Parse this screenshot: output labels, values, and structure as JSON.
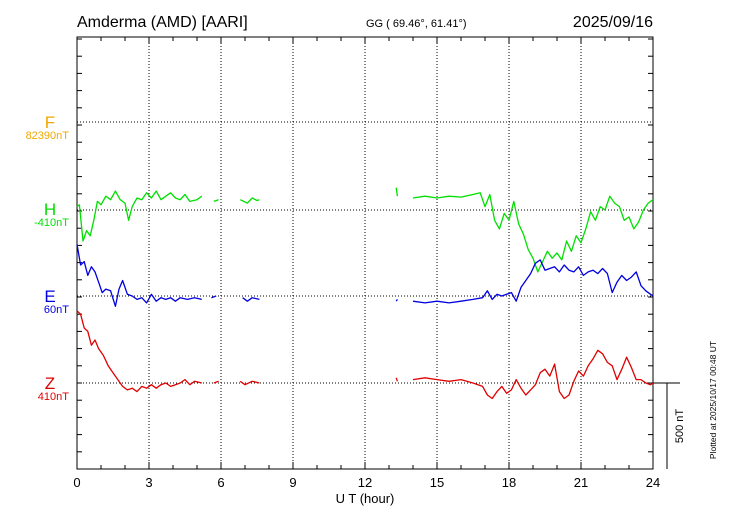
{
  "header": {
    "station": "Amderma (AMD)  [AARI]",
    "coords": "GG ( 69.46°,  61.41°)",
    "date": "2025/09/16"
  },
  "colors": {
    "F": "#f0a800",
    "H": "#00e000",
    "E": "#0000e0",
    "Z": "#e00000",
    "axis": "#000000"
  },
  "chart_data": {
    "type": "line",
    "title": "Amderma (AMD)  [AARI]  2025/09/16",
    "xlabel": "U T (hour)",
    "ylabel": "",
    "xlim": [
      0,
      24
    ],
    "xticks": [
      0,
      3,
      6,
      9,
      12,
      15,
      18,
      21,
      24
    ],
    "xtick_labels": [
      "0",
      "3",
      "6",
      "9",
      "12",
      "15",
      "18",
      "21",
      "24"
    ],
    "grid": true,
    "scale_label": "500 nT",
    "plotted_note": "Plotted at 2025/10/17 00:48 UT",
    "series": [
      {
        "name": "F",
        "baseline_label": "82390nT",
        "units": "nT offset from baseline",
        "points": []
      },
      {
        "name": "H",
        "baseline_label": "-410nT",
        "units": "nT offset from baseline",
        "points": [
          [
            0.0,
            20
          ],
          [
            0.1,
            30
          ],
          [
            0.25,
            -180
          ],
          [
            0.4,
            -120
          ],
          [
            0.55,
            -150
          ],
          [
            0.7,
            -60
          ],
          [
            0.85,
            50
          ],
          [
            1.0,
            30
          ],
          [
            1.2,
            80
          ],
          [
            1.4,
            60
          ],
          [
            1.6,
            110
          ],
          [
            1.8,
            60
          ],
          [
            2.0,
            40
          ],
          [
            2.15,
            -60
          ],
          [
            2.3,
            20
          ],
          [
            2.5,
            70
          ],
          [
            2.7,
            60
          ],
          [
            2.9,
            100
          ],
          [
            3.1,
            70
          ],
          [
            3.3,
            110
          ],
          [
            3.5,
            60
          ],
          [
            3.7,
            80
          ],
          [
            3.9,
            100
          ],
          [
            4.1,
            70
          ],
          [
            4.3,
            60
          ],
          [
            4.5,
            90
          ],
          [
            4.7,
            50
          ],
          [
            5.0,
            60
          ],
          [
            5.2,
            80
          ],
          [
            null,
            null
          ],
          [
            5.7,
            50
          ],
          [
            5.9,
            60
          ],
          [
            null,
            null
          ],
          [
            6.4,
            50
          ],
          [
            null,
            null
          ],
          [
            6.8,
            60
          ],
          [
            7.1,
            40
          ],
          [
            7.3,
            70
          ],
          [
            7.5,
            55
          ],
          [
            7.6,
            60
          ],
          [
            null,
            null
          ],
          [
            13.3,
            130
          ],
          [
            13.35,
            80
          ],
          [
            null,
            null
          ],
          [
            14.0,
            70
          ],
          [
            14.5,
            80
          ],
          [
            15.0,
            70
          ],
          [
            15.5,
            80
          ],
          [
            16.0,
            75
          ],
          [
            16.5,
            90
          ],
          [
            16.8,
            100
          ],
          [
            17.0,
            20
          ],
          [
            17.2,
            90
          ],
          [
            17.4,
            -60
          ],
          [
            17.6,
            -110
          ],
          [
            17.8,
            -20
          ],
          [
            18.0,
            -60
          ],
          [
            18.2,
            50
          ],
          [
            18.4,
            -80
          ],
          [
            18.6,
            -140
          ],
          [
            18.8,
            -230
          ],
          [
            19.0,
            -280
          ],
          [
            19.2,
            -360
          ],
          [
            19.4,
            -300
          ],
          [
            19.6,
            -240
          ],
          [
            19.8,
            -280
          ],
          [
            20.0,
            -250
          ],
          [
            20.2,
            -290
          ],
          [
            20.4,
            -180
          ],
          [
            20.6,
            -240
          ],
          [
            20.8,
            -150
          ],
          [
            21.0,
            -190
          ],
          [
            21.2,
            -110
          ],
          [
            21.4,
            -10
          ],
          [
            21.6,
            -60
          ],
          [
            21.8,
            20
          ],
          [
            22.0,
            0
          ],
          [
            22.2,
            80
          ],
          [
            22.4,
            40
          ],
          [
            22.6,
            20
          ],
          [
            22.8,
            -60
          ],
          [
            23.0,
            -40
          ],
          [
            23.2,
            -110
          ],
          [
            23.4,
            -70
          ],
          [
            23.6,
            0
          ],
          [
            23.8,
            40
          ],
          [
            24.0,
            60
          ]
        ]
      },
      {
        "name": "E",
        "baseline_label": "60nT",
        "units": "nT offset from baseline",
        "points": [
          [
            0.0,
            300
          ],
          [
            0.15,
            180
          ],
          [
            0.3,
            200
          ],
          [
            0.45,
            120
          ],
          [
            0.6,
            170
          ],
          [
            0.75,
            140
          ],
          [
            0.9,
            80
          ],
          [
            1.05,
            20
          ],
          [
            1.2,
            40
          ],
          [
            1.4,
            30
          ],
          [
            1.6,
            -60
          ],
          [
            1.75,
            40
          ],
          [
            1.9,
            90
          ],
          [
            2.1,
            10
          ],
          [
            2.3,
            0
          ],
          [
            2.5,
            -20
          ],
          [
            2.7,
            -10
          ],
          [
            2.9,
            -40
          ],
          [
            3.1,
            10
          ],
          [
            3.3,
            -30
          ],
          [
            3.5,
            -10
          ],
          [
            3.7,
            -20
          ],
          [
            3.9,
            -10
          ],
          [
            4.1,
            -30
          ],
          [
            4.3,
            -10
          ],
          [
            4.6,
            -20
          ],
          [
            4.9,
            -10
          ],
          [
            5.2,
            -20
          ],
          [
            null,
            null
          ],
          [
            5.6,
            -10
          ],
          [
            5.8,
            0
          ],
          [
            null,
            null
          ],
          [
            6.2,
            -20
          ],
          [
            null,
            null
          ],
          [
            6.9,
            -10
          ],
          [
            7.1,
            -30
          ],
          [
            7.3,
            -10
          ],
          [
            7.6,
            -20
          ],
          [
            null,
            null
          ],
          [
            13.3,
            -30
          ],
          [
            13.35,
            -20
          ],
          [
            null,
            null
          ],
          [
            14.0,
            -30
          ],
          [
            14.5,
            -40
          ],
          [
            15.0,
            -30
          ],
          [
            15.5,
            -40
          ],
          [
            16.0,
            -30
          ],
          [
            16.5,
            -20
          ],
          [
            16.9,
            -10
          ],
          [
            17.1,
            30
          ],
          [
            17.3,
            -20
          ],
          [
            17.5,
            10
          ],
          [
            17.7,
            0
          ],
          [
            17.9,
            10
          ],
          [
            18.1,
            20
          ],
          [
            18.3,
            -30
          ],
          [
            18.5,
            50
          ],
          [
            18.7,
            90
          ],
          [
            18.9,
            130
          ],
          [
            19.1,
            190
          ],
          [
            19.3,
            210
          ],
          [
            19.5,
            150
          ],
          [
            19.7,
            160
          ],
          [
            19.9,
            170
          ],
          [
            20.1,
            140
          ],
          [
            20.3,
            180
          ],
          [
            20.5,
            150
          ],
          [
            20.7,
            140
          ],
          [
            20.9,
            170
          ],
          [
            21.1,
            120
          ],
          [
            21.3,
            140
          ],
          [
            21.5,
            150
          ],
          [
            21.7,
            130
          ],
          [
            21.9,
            160
          ],
          [
            22.1,
            130
          ],
          [
            22.3,
            20
          ],
          [
            22.5,
            80
          ],
          [
            22.7,
            120
          ],
          [
            22.9,
            90
          ],
          [
            23.1,
            110
          ],
          [
            23.3,
            140
          ],
          [
            23.5,
            60
          ],
          [
            23.7,
            30
          ],
          [
            23.9,
            10
          ],
          [
            24.0,
            0
          ]
        ]
      },
      {
        "name": "Z",
        "baseline_label": "410nT",
        "units": "nT offset from baseline",
        "points": [
          [
            0.0,
            420
          ],
          [
            0.15,
            400
          ],
          [
            0.3,
            320
          ],
          [
            0.45,
            300
          ],
          [
            0.6,
            220
          ],
          [
            0.75,
            250
          ],
          [
            0.9,
            200
          ],
          [
            1.1,
            160
          ],
          [
            1.3,
            100
          ],
          [
            1.5,
            60
          ],
          [
            1.7,
            20
          ],
          [
            1.9,
            -20
          ],
          [
            2.1,
            -40
          ],
          [
            2.3,
            -30
          ],
          [
            2.5,
            -50
          ],
          [
            2.7,
            -20
          ],
          [
            2.9,
            -30
          ],
          [
            3.1,
            -10
          ],
          [
            3.3,
            -30
          ],
          [
            3.5,
            -10
          ],
          [
            3.7,
            0
          ],
          [
            3.9,
            -20
          ],
          [
            4.1,
            -10
          ],
          [
            4.3,
            0
          ],
          [
            4.5,
            20
          ],
          [
            4.7,
            -10
          ],
          [
            4.9,
            10
          ],
          [
            5.2,
            0
          ],
          [
            null,
            null
          ],
          [
            5.7,
            0
          ],
          [
            5.9,
            10
          ],
          [
            null,
            null
          ],
          [
            6.2,
            0
          ],
          [
            null,
            null
          ],
          [
            6.8,
            10
          ],
          [
            7.0,
            -10
          ],
          [
            7.3,
            10
          ],
          [
            7.6,
            0
          ],
          [
            null,
            null
          ],
          [
            13.3,
            30
          ],
          [
            13.35,
            10
          ],
          [
            null,
            null
          ],
          [
            14.0,
            20
          ],
          [
            14.5,
            30
          ],
          [
            15.0,
            20
          ],
          [
            15.5,
            10
          ],
          [
            16.0,
            20
          ],
          [
            16.5,
            0
          ],
          [
            16.9,
            -20
          ],
          [
            17.1,
            -70
          ],
          [
            17.3,
            -90
          ],
          [
            17.5,
            -50
          ],
          [
            17.7,
            -20
          ],
          [
            17.9,
            -60
          ],
          [
            18.1,
            -40
          ],
          [
            18.3,
            20
          ],
          [
            18.5,
            -30
          ],
          [
            18.7,
            -70
          ],
          [
            18.9,
            -40
          ],
          [
            19.1,
            -10
          ],
          [
            19.3,
            60
          ],
          [
            19.5,
            80
          ],
          [
            19.7,
            40
          ],
          [
            19.9,
            110
          ],
          [
            20.1,
            -50
          ],
          [
            20.3,
            -90
          ],
          [
            20.5,
            -70
          ],
          [
            20.7,
            10
          ],
          [
            20.9,
            70
          ],
          [
            21.1,
            40
          ],
          [
            21.3,
            100
          ],
          [
            21.5,
            140
          ],
          [
            21.7,
            190
          ],
          [
            21.9,
            170
          ],
          [
            22.1,
            120
          ],
          [
            22.3,
            100
          ],
          [
            22.5,
            20
          ],
          [
            22.7,
            80
          ],
          [
            22.9,
            150
          ],
          [
            23.1,
            90
          ],
          [
            23.3,
            20
          ],
          [
            23.5,
            20
          ],
          [
            23.7,
            0
          ],
          [
            23.9,
            -10
          ],
          [
            24.0,
            0
          ]
        ]
      }
    ]
  }
}
